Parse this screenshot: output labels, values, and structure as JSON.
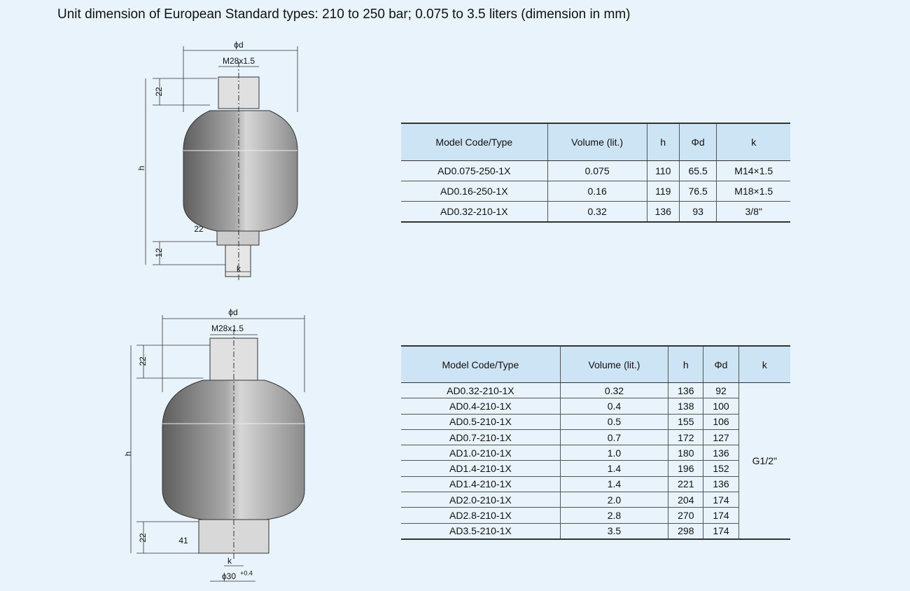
{
  "title": "Unit dimension of European Standard types: 210 to 250 bar; 0.075 to 3.5 liters (dimension in mm)",
  "drawing_1": {
    "phi_d": "ϕd",
    "thread": "M28x1.5",
    "neck_height": "22",
    "height": "h",
    "wrench": "22",
    "bottom_height": "12",
    "k": "k"
  },
  "drawing_2": {
    "phi_d": "ϕd",
    "thread": "M28x1.5",
    "neck_height": "22",
    "height": "h",
    "bottom_height": "22",
    "wrench": "41",
    "k": "k",
    "phi_30": "ϕ30",
    "tolerance": "+0.4"
  },
  "table_1": {
    "header": [
      "Model Code/Type",
      "Volume (lit.)",
      "h",
      "Φd",
      "k"
    ],
    "rows": [
      [
        "AD0.075-250-1X",
        "0.075",
        "110",
        "65.5",
        "M14×1.5"
      ],
      [
        "AD0.16-250-1X",
        "0.16",
        "119",
        "76.5",
        "M18×1.5"
      ],
      [
        "AD0.32-210-1X",
        "0.32",
        "136",
        "93",
        "3/8\""
      ]
    ]
  },
  "table_2": {
    "header": [
      "Model Code/Type",
      "Volume (lit.)",
      "h",
      "Φd",
      "k"
    ],
    "rows": [
      [
        "AD0.32-210-1X",
        "0.32",
        "136",
        "92"
      ],
      [
        "AD0.4-210-1X",
        "0.4",
        "138",
        "100"
      ],
      [
        "AD0.5-210-1X",
        "0.5",
        "155",
        "106"
      ],
      [
        "AD0.7-210-1X",
        "0.7",
        "172",
        "127"
      ],
      [
        "AD1.0-210-1X",
        "1.0",
        "180",
        "136"
      ],
      [
        "AD1.4-210-1X",
        "1.4",
        "196",
        "152"
      ],
      [
        "AD1.4-210-1X",
        "1.4",
        "221",
        "136"
      ],
      [
        "AD2.0-210-1X",
        "2.0",
        "204",
        "174"
      ],
      [
        "AD2.8-210-1X",
        "2.8",
        "270",
        "174"
      ],
      [
        "AD3.5-210-1X",
        "3.5",
        "298",
        "174"
      ]
    ],
    "k_merged": "G1/2\""
  }
}
